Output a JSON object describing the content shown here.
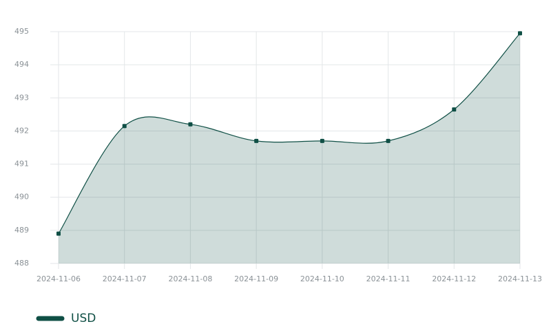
{
  "chart_data": {
    "type": "area",
    "x": [
      "2024-11-06",
      "2024-11-07",
      "2024-11-08",
      "2024-11-09",
      "2024-11-10",
      "2024-11-11",
      "2024-11-12",
      "2024-11-13"
    ],
    "series": [
      {
        "name": "USD",
        "color": "#0f4f45",
        "values": [
          488.9,
          492.15,
          492.2,
          491.7,
          491.7,
          491.7,
          492.65,
          494.95
        ]
      }
    ],
    "ylim": [
      488,
      495
    ],
    "yticks": [
      488,
      489,
      490,
      491,
      492,
      493,
      494,
      495
    ],
    "grid": true,
    "legend": "bottom-left"
  }
}
